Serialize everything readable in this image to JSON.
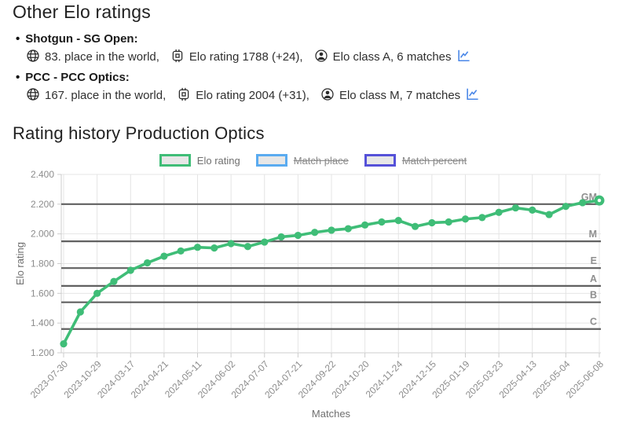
{
  "page": {
    "title": "Other Elo ratings",
    "section_title": "Rating history Production Optics"
  },
  "other_ratings": [
    {
      "discipline": "Shotgun - SG Open:",
      "place_text": "83. place in the world,",
      "elo_text": "Elo rating 1788 (+24),",
      "class_text": "Elo class A, 6 matches",
      "icons": [
        "globe-icon",
        "cpu-icon",
        "person-circle-icon",
        "line-chart-link-icon"
      ]
    },
    {
      "discipline": "PCC - PCC Optics:",
      "place_text": "167. place in the world,",
      "elo_text": "Elo rating 2004 (+31),",
      "class_text": "Elo class M, 7 matches",
      "icons": [
        "globe-icon",
        "cpu-icon",
        "person-circle-icon",
        "line-chart-link-icon"
      ]
    }
  ],
  "legend": [
    {
      "label": "Elo rating",
      "color": "#3fbd77",
      "active": true
    },
    {
      "label": "Match place",
      "color": "#5aabf0",
      "active": false
    },
    {
      "label": "Match percent",
      "color": "#5551d8",
      "active": false
    }
  ],
  "colors": {
    "accent_green": "#3fbd77",
    "accent_blue": "#5aabf0",
    "accent_indigo": "#5551d8",
    "link_blue": "#4a87e8",
    "grid": "#e4e4e4",
    "axis": "#cccccc",
    "class_line": "#606060",
    "tick_text": "#8c8c8c",
    "axis_title_text": "#6f6f6f"
  },
  "chart_data": {
    "type": "line",
    "title": "Rating history Production Optics",
    "xlabel": "Matches",
    "ylabel": "Elo rating",
    "ylim": [
      1200,
      2400
    ],
    "y_tick_step": 200,
    "y_tick_labels": [
      "1.200",
      "1.400",
      "1.600",
      "1.800",
      "2.000",
      "2.200",
      "2.400"
    ],
    "x_tick_labels": [
      "2023-07-30",
      "2023-10-29",
      "2024-03-17",
      "2024-04-21",
      "2024-05-11",
      "2024-06-02",
      "2024-07-07",
      "2024-07-21",
      "2024-09-22",
      "2024-10-20",
      "2024-11-24",
      "2024-12-15",
      "2025-01-19",
      "2025-03-23",
      "2025-04-13",
      "2025-05-04",
      "2025-06-08"
    ],
    "points_per_label": 2,
    "grid": true,
    "legend_position": "top",
    "legend_entries": [
      "Elo rating",
      "Match place",
      "Match percent"
    ],
    "disabled_series": [
      "Match place",
      "Match percent"
    ],
    "series": [
      {
        "name": "Elo rating",
        "color": "#3fbd77",
        "values": [
          1260,
          1475,
          1600,
          1680,
          1755,
          1805,
          1850,
          1885,
          1910,
          1905,
          1935,
          1915,
          1945,
          1980,
          1990,
          2010,
          2025,
          2035,
          2060,
          2080,
          2090,
          2050,
          2075,
          2080,
          2100,
          2110,
          2145,
          2175,
          2160,
          2130,
          2185,
          2210,
          2225
        ]
      }
    ],
    "class_lines": [
      {
        "label": "GM",
        "value": 2200
      },
      {
        "label": "M",
        "value": 1950
      },
      {
        "label": "E",
        "value": 1770
      },
      {
        "label": "A",
        "value": 1650
      },
      {
        "label": "B",
        "value": 1540
      },
      {
        "label": "C",
        "value": 1360
      }
    ]
  }
}
